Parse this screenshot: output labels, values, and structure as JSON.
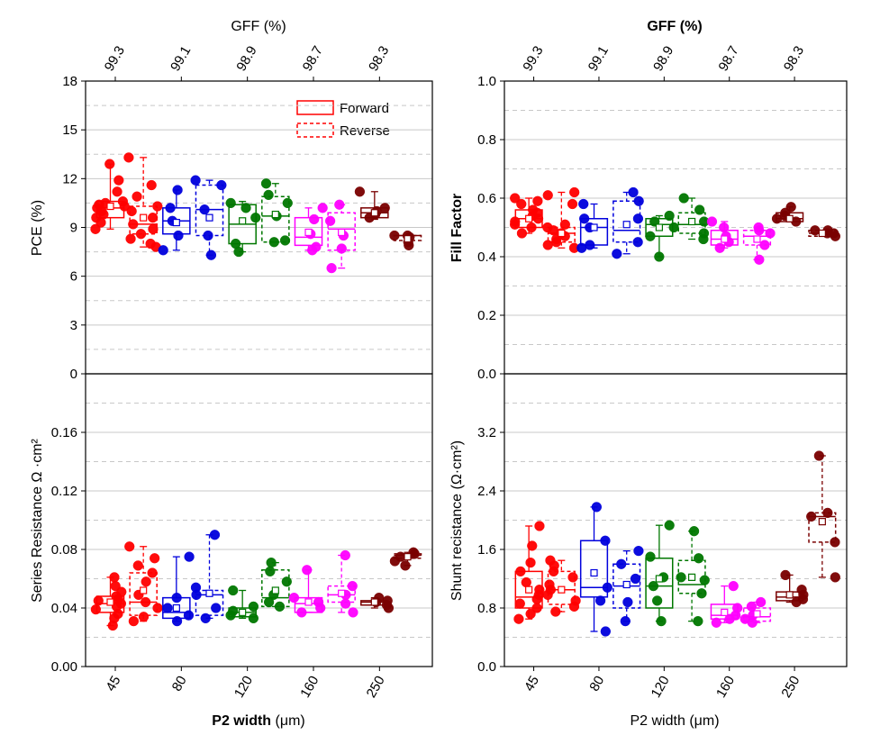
{
  "chart_data": {
    "type": "box",
    "groups": [
      "45 Forward",
      "45 Reverse",
      "80 Forward",
      "80 Reverse",
      "120 Forward",
      "120 Reverse",
      "160 Forward",
      "160 Reverse",
      "250 Forward",
      "250 Reverse"
    ],
    "group_colors": [
      "#ff0000",
      "#ff0000",
      "#0000dd",
      "#0000dd",
      "#007700",
      "#007700",
      "#ff00ff",
      "#ff00ff",
      "#7a0000",
      "#7a0000"
    ],
    "group_styles": [
      "solid",
      "dashed",
      "solid",
      "dashed",
      "solid",
      "dashed",
      "solid",
      "dashed",
      "solid",
      "dashed"
    ],
    "x_ticks": [
      "45",
      "80",
      "120",
      "160",
      "250"
    ],
    "x_label": "P2 width",
    "x_unit": "(μm)",
    "top_axis_label": "GFF (%)",
    "top_ticks": [
      "99.3",
      "99.1",
      "98.9",
      "98.7",
      "98.3"
    ],
    "legend": {
      "forward": "Forward",
      "reverse": "Reverse"
    },
    "panels": [
      {
        "id": "pce",
        "ylabel": "PCE (%)",
        "ylim": [
          0,
          18
        ],
        "yticks": [
          "0",
          "3",
          "6",
          "9",
          "12",
          "15",
          "18"
        ],
        "ytick_values": [
          0,
          3,
          6,
          9,
          12,
          15,
          18
        ],
        "boxes": [
          {
            "q1": 9.6,
            "median": 10.2,
            "q3": 10.6,
            "min": 8.9,
            "max": 12.9,
            "mean": 10.3,
            "points": [
              8.9,
              9.3,
              9.6,
              9.8,
              10.0,
              10.2,
              10.3,
              10.4,
              10.5,
              10.6,
              11.2,
              11.9,
              12.9
            ]
          },
          {
            "q1": 8.6,
            "median": 9.2,
            "q3": 10.3,
            "min": 7.8,
            "max": 13.3,
            "mean": 9.6,
            "points": [
              7.8,
              8.0,
              8.3,
              8.6,
              8.9,
              9.2,
              9.6,
              10.0,
              10.3,
              10.9,
              11.6,
              13.3
            ]
          },
          {
            "q1": 8.6,
            "median": 9.4,
            "q3": 10.2,
            "min": 7.6,
            "max": 11.3,
            "mean": 9.3,
            "points": [
              7.6,
              8.5,
              9.4,
              10.2,
              11.3
            ]
          },
          {
            "q1": 8.5,
            "median": 10.1,
            "q3": 11.6,
            "min": 7.3,
            "max": 11.9,
            "mean": 9.6,
            "points": [
              7.3,
              8.5,
              10.1,
              11.6,
              11.9
            ]
          },
          {
            "q1": 8.0,
            "median": 9.2,
            "q3": 10.4,
            "min": 7.5,
            "max": 10.6,
            "mean": 9.4,
            "points": [
              7.5,
              8.0,
              9.6,
              10.2,
              10.5
            ]
          },
          {
            "q1": 8.1,
            "median": 9.7,
            "q3": 10.9,
            "min": 8.1,
            "max": 11.7,
            "mean": 9.8,
            "points": [
              8.1,
              8.2,
              9.7,
              10.5,
              11.0,
              11.7
            ]
          },
          {
            "q1": 7.9,
            "median": 8.4,
            "q3": 9.6,
            "min": 7.6,
            "max": 10.2,
            "mean": 8.7,
            "points": [
              7.6,
              7.8,
              8.6,
              9.5,
              10.2
            ]
          },
          {
            "q1": 7.6,
            "median": 8.9,
            "q3": 9.9,
            "min": 6.5,
            "max": 10.4,
            "mean": 8.7,
            "points": [
              6.5,
              7.7,
              8.5,
              9.4,
              10.4
            ]
          },
          {
            "q1": 9.6,
            "median": 9.9,
            "q3": 10.2,
            "min": 9.5,
            "max": 11.2,
            "mean": 9.9,
            "points": [
              9.6,
              9.8,
              10.0,
              10.2,
              11.2
            ]
          },
          {
            "q1": 8.2,
            "median": 8.5,
            "q3": 8.5,
            "min": 7.9,
            "max": 8.5,
            "mean": 8.3,
            "points": [
              7.9,
              8.1,
              8.4,
              8.5,
              8.5
            ]
          }
        ]
      },
      {
        "id": "ff",
        "ylabel": "Fill Factor",
        "ylim": [
          0,
          1
        ],
        "yticks": [
          "0.0",
          "0.2",
          "0.4",
          "0.6",
          "0.8",
          "1.0"
        ],
        "ytick_values": [
          0,
          0.2,
          0.4,
          0.6,
          0.8,
          1.0
        ],
        "boxes": [
          {
            "q1": 0.5,
            "median": 0.53,
            "q3": 0.56,
            "min": 0.48,
            "max": 0.6,
            "mean": 0.53,
            "points": [
              0.48,
              0.5,
              0.51,
              0.52,
              0.53,
              0.54,
              0.55,
              0.56,
              0.58,
              0.59,
              0.6
            ]
          },
          {
            "q1": 0.45,
            "median": 0.48,
            "q3": 0.5,
            "min": 0.43,
            "max": 0.62,
            "mean": 0.48,
            "points": [
              0.43,
              0.44,
              0.45,
              0.46,
              0.47,
              0.48,
              0.49,
              0.5,
              0.51,
              0.58,
              0.61,
              0.62
            ]
          },
          {
            "q1": 0.44,
            "median": 0.5,
            "q3": 0.53,
            "min": 0.43,
            "max": 0.58,
            "mean": 0.5,
            "points": [
              0.43,
              0.44,
              0.5,
              0.53,
              0.58
            ]
          },
          {
            "q1": 0.45,
            "median": 0.49,
            "q3": 0.59,
            "min": 0.41,
            "max": 0.62,
            "mean": 0.51,
            "points": [
              0.41,
              0.45,
              0.53,
              0.59,
              0.62
            ]
          },
          {
            "q1": 0.47,
            "median": 0.51,
            "q3": 0.53,
            "min": 0.4,
            "max": 0.54,
            "mean": 0.5,
            "points": [
              0.4,
              0.47,
              0.5,
              0.52,
              0.54
            ]
          },
          {
            "q1": 0.48,
            "median": 0.51,
            "q3": 0.55,
            "min": 0.46,
            "max": 0.6,
            "mean": 0.52,
            "points": [
              0.46,
              0.48,
              0.52,
              0.56,
              0.6
            ]
          },
          {
            "q1": 0.44,
            "median": 0.46,
            "q3": 0.49,
            "min": 0.43,
            "max": 0.52,
            "mean": 0.46,
            "points": [
              0.43,
              0.45,
              0.47,
              0.5,
              0.52
            ]
          },
          {
            "q1": 0.44,
            "median": 0.47,
            "q3": 0.49,
            "min": 0.39,
            "max": 0.5,
            "mean": 0.46,
            "points": [
              0.39,
              0.44,
              0.48,
              0.49,
              0.5
            ]
          },
          {
            "q1": 0.52,
            "median": 0.53,
            "q3": 0.55,
            "min": 0.52,
            "max": 0.57,
            "mean": 0.53,
            "points": [
              0.52,
              0.53,
              0.54,
              0.55,
              0.57
            ]
          },
          {
            "q1": 0.47,
            "median": 0.48,
            "q3": 0.49,
            "min": 0.47,
            "max": 0.49,
            "mean": 0.48,
            "points": [
              0.47,
              0.48,
              0.48,
              0.49,
              0.49
            ]
          }
        ]
      },
      {
        "id": "rs",
        "ylabel": "Series Resistance Ω ·cm²",
        "ylim": [
          0,
          0.2
        ],
        "yticks": [
          "0.00",
          "0.04",
          "0.08",
          "0.12",
          "0.16"
        ],
        "ytick_values": [
          0,
          0.04,
          0.08,
          0.12,
          0.16
        ],
        "boxes": [
          {
            "q1": 0.037,
            "median": 0.043,
            "q3": 0.048,
            "min": 0.028,
            "max": 0.061,
            "mean": 0.044,
            "points": [
              0.028,
              0.033,
              0.036,
              0.039,
              0.041,
              0.043,
              0.045,
              0.046,
              0.048,
              0.051,
              0.055,
              0.061
            ]
          },
          {
            "q1": 0.035,
            "median": 0.044,
            "q3": 0.064,
            "min": 0.031,
            "max": 0.082,
            "mean": 0.052,
            "points": [
              0.031,
              0.034,
              0.04,
              0.044,
              0.049,
              0.058,
              0.064,
              0.069,
              0.074,
              0.082
            ]
          },
          {
            "q1": 0.033,
            "median": 0.037,
            "q3": 0.047,
            "min": 0.031,
            "max": 0.075,
            "mean": 0.04,
            "points": [
              0.031,
              0.035,
              0.04,
              0.047,
              0.075
            ]
          },
          {
            "q1": 0.035,
            "median": 0.049,
            "q3": 0.052,
            "min": 0.033,
            "max": 0.09,
            "mean": 0.05,
            "points": [
              0.033,
              0.04,
              0.049,
              0.054,
              0.09
            ]
          },
          {
            "q1": 0.034,
            "median": 0.037,
            "q3": 0.04,
            "min": 0.033,
            "max": 0.052,
            "mean": 0.037,
            "points": [
              0.033,
              0.035,
              0.038,
              0.041,
              0.052
            ]
          },
          {
            "q1": 0.041,
            "median": 0.047,
            "q3": 0.066,
            "min": 0.041,
            "max": 0.071,
            "mean": 0.052,
            "points": [
              0.041,
              0.044,
              0.049,
              0.058,
              0.065,
              0.071
            ]
          },
          {
            "q1": 0.037,
            "median": 0.043,
            "q3": 0.047,
            "min": 0.037,
            "max": 0.066,
            "mean": 0.044,
            "points": [
              0.037,
              0.04,
              0.044,
              0.047,
              0.066
            ]
          },
          {
            "q1": 0.044,
            "median": 0.049,
            "q3": 0.055,
            "min": 0.037,
            "max": 0.076,
            "mean": 0.05,
            "points": [
              0.037,
              0.043,
              0.049,
              0.055,
              0.076
            ]
          },
          {
            "q1": 0.042,
            "median": 0.044,
            "q3": 0.045,
            "min": 0.04,
            "max": 0.047,
            "mean": 0.044,
            "points": [
              0.04,
              0.042,
              0.044,
              0.045,
              0.047
            ]
          },
          {
            "q1": 0.074,
            "median": 0.076,
            "q3": 0.077,
            "min": 0.069,
            "max": 0.078,
            "mean": 0.075,
            "points": [
              0.069,
              0.072,
              0.075,
              0.077,
              0.078
            ]
          }
        ]
      },
      {
        "id": "rsh",
        "ylabel": "Shunt recistance (Ω·cm²)",
        "ylim": [
          0,
          4
        ],
        "yticks": [
          "0.0",
          "0.8",
          "1.6",
          "2.4",
          "3.2"
        ],
        "ytick_values": [
          0,
          0.8,
          1.6,
          2.4,
          3.2
        ],
        "boxes": [
          {
            "q1": 0.8,
            "median": 0.95,
            "q3": 1.3,
            "min": 0.65,
            "max": 1.92,
            "mean": 1.05,
            "points": [
              0.65,
              0.72,
              0.8,
              0.86,
              0.92,
              0.98,
              1.05,
              1.15,
              1.3,
              1.42,
              1.65,
              1.92
            ]
          },
          {
            "q1": 0.85,
            "median": 1.05,
            "q3": 1.3,
            "min": 0.75,
            "max": 1.45,
            "mean": 1.05,
            "points": [
              0.75,
              0.82,
              0.9,
              0.98,
              1.05,
              1.12,
              1.22,
              1.3,
              1.38,
              1.45
            ]
          },
          {
            "q1": 0.95,
            "median": 1.08,
            "q3": 1.72,
            "min": 0.48,
            "max": 2.18,
            "mean": 1.28,
            "points": [
              0.48,
              0.9,
              1.08,
              1.72,
              2.18
            ]
          },
          {
            "q1": 0.8,
            "median": 1.1,
            "q3": 1.4,
            "min": 0.62,
            "max": 1.58,
            "mean": 1.12,
            "points": [
              0.62,
              0.88,
              1.2,
              1.4,
              1.58
            ]
          },
          {
            "q1": 0.8,
            "median": 1.1,
            "q3": 1.48,
            "min": 0.62,
            "max": 1.93,
            "mean": 1.2,
            "points": [
              0.62,
              0.9,
              1.1,
              1.22,
              1.5,
              1.93
            ]
          },
          {
            "q1": 1.0,
            "median": 1.12,
            "q3": 1.45,
            "min": 0.62,
            "max": 1.85,
            "mean": 1.22,
            "points": [
              0.62,
              1.0,
              1.18,
              1.22,
              1.48,
              1.85
            ]
          },
          {
            "q1": 0.65,
            "median": 0.7,
            "q3": 0.85,
            "min": 0.6,
            "max": 1.1,
            "mean": 0.74,
            "points": [
              0.6,
              0.65,
              0.7,
              0.8,
              1.1
            ]
          },
          {
            "q1": 0.62,
            "median": 0.68,
            "q3": 0.8,
            "min": 0.6,
            "max": 0.88,
            "mean": 0.72,
            "points": [
              0.6,
              0.65,
              0.7,
              0.82,
              0.88
            ]
          },
          {
            "q1": 0.9,
            "median": 0.95,
            "q3": 1.02,
            "min": 0.88,
            "max": 1.25,
            "mean": 0.98,
            "points": [
              0.88,
              0.92,
              0.98,
              1.05,
              1.25
            ]
          },
          {
            "q1": 1.7,
            "median": 2.05,
            "q3": 2.1,
            "min": 1.22,
            "max": 2.88,
            "mean": 1.98,
            "points": [
              1.22,
              1.7,
              2.05,
              2.1,
              2.88
            ]
          }
        ]
      }
    ]
  }
}
